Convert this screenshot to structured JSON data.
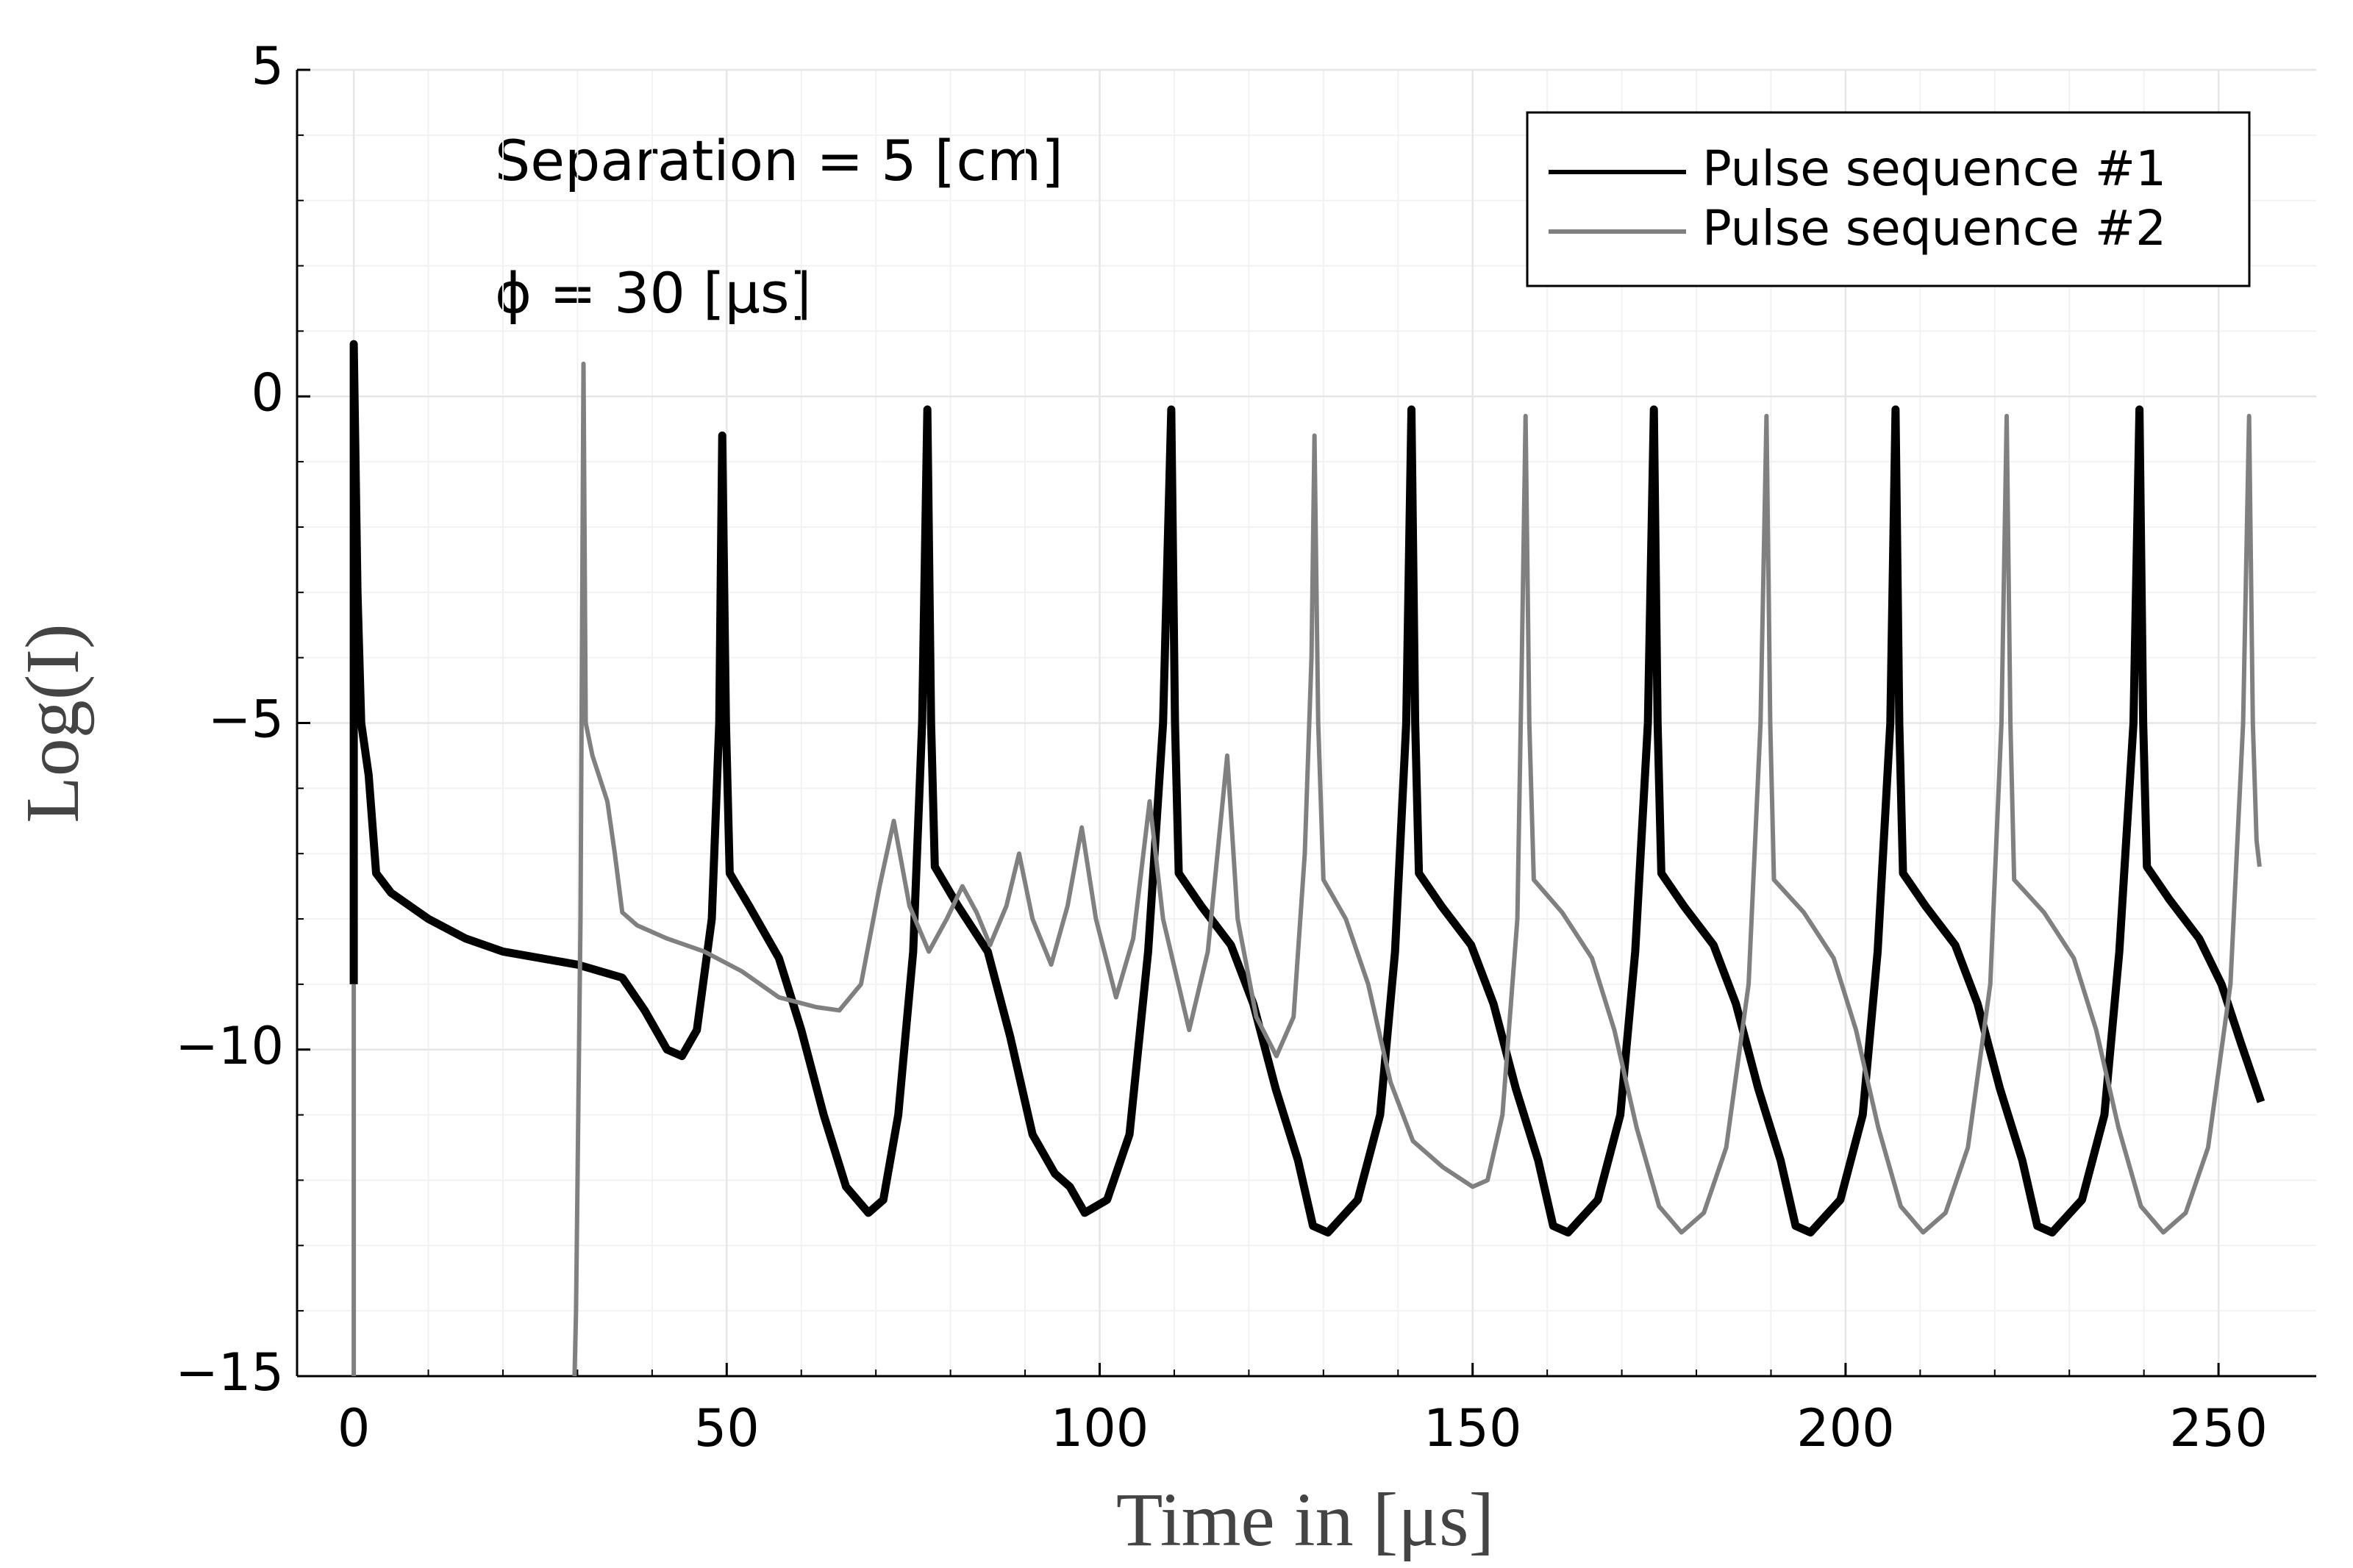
{
  "chart_data": {
    "type": "line",
    "xlabel": "Time in [μs]",
    "ylabel": "Log(I)",
    "annotations": [
      "Separation = 5 [cm]",
      "ϕ = 30 [μs]"
    ],
    "xlim": [
      -7.6,
      263.1
    ],
    "ylim": [
      -15,
      5
    ],
    "xticks": [
      0,
      50,
      100,
      150,
      200,
      250
    ],
    "yticks": [
      {
        "value": -15,
        "label": "−15"
      },
      {
        "value": -10,
        "label": "−10"
      },
      {
        "value": -5,
        "label": "−5"
      },
      0,
      5
    ],
    "grid": true,
    "legend": "upper right",
    "series": [
      {
        "name": "Pulse sequence #1",
        "color": "#000000",
        "x": [
          0,
          0,
          0.5,
          1,
          2,
          3,
          5,
          10,
          15,
          20,
          30,
          36,
          39,
          42,
          44,
          46,
          48,
          49,
          49.4,
          49.9,
          50.4,
          53,
          57,
          60,
          63,
          66,
          69,
          71,
          73,
          75,
          76.2,
          76.9,
          77.4,
          77.9,
          81,
          85,
          88,
          91,
          94,
          96,
          98,
          101,
          104,
          106.5,
          108.5,
          109.6,
          110.1,
          110.6,
          113.6,
          117.6,
          120.6,
          123.6,
          126.6,
          128.6,
          130.6,
          134.6,
          137.6,
          139.6,
          141.1,
          141.8,
          142.3,
          142.8,
          145.8,
          149.8,
          152.8,
          155.8,
          158.8,
          160.8,
          162.8,
          166.8,
          169.8,
          171.8,
          173.5,
          174.3,
          174.8,
          175.3,
          178.3,
          182.3,
          185.3,
          188.3,
          191.3,
          193.3,
          195.3,
          199.3,
          202.3,
          204.3,
          206,
          206.7,
          207.2,
          207.7,
          210.7,
          214.7,
          217.7,
          220.7,
          223.7,
          225.7,
          227.7,
          231.7,
          234.7,
          236.7,
          238.6,
          239.4,
          239.9,
          240.4,
          243.4,
          247.4,
          250.4,
          253,
          255.7
        ],
        "values": [
          -9,
          0.8,
          -3,
          -5,
          -5.8,
          -7.3,
          -7.6,
          -8.0,
          -8.3,
          -8.5,
          -8.7,
          -8.9,
          -9.4,
          -10.0,
          -10.1,
          -9.7,
          -8,
          -5,
          -0.6,
          -5,
          -7.3,
          -7.8,
          -8.6,
          -9.7,
          -11,
          -12.1,
          -12.5,
          -12.3,
          -11,
          -8.5,
          -5,
          -0.2,
          -5,
          -7.2,
          -7.8,
          -8.5,
          -9.8,
          -11.3,
          -11.9,
          -12.1,
          -12.5,
          -12.3,
          -11.3,
          -8.5,
          -5,
          -0.2,
          -5,
          -7.3,
          -7.8,
          -8.4,
          -9.3,
          -10.6,
          -11.7,
          -12.7,
          -12.8,
          -12.3,
          -11,
          -8.5,
          -5,
          -0.2,
          -5,
          -7.3,
          -7.8,
          -8.4,
          -9.3,
          -10.6,
          -11.7,
          -12.7,
          -12.8,
          -12.3,
          -11,
          -8.5,
          -5,
          -0.2,
          -5,
          -7.3,
          -7.8,
          -8.4,
          -9.3,
          -10.6,
          -11.7,
          -12.7,
          -12.8,
          -12.3,
          -11,
          -8.5,
          -5,
          -0.2,
          -5,
          -7.3,
          -7.8,
          -8.4,
          -9.3,
          -10.6,
          -11.7,
          -12.7,
          -12.8,
          -12.3,
          -11,
          -8.5,
          -5,
          -0.2,
          -5,
          -7.2,
          -7.7,
          -8.3,
          -9.0,
          -9.9,
          -10.8
        ]
      },
      {
        "name": "Pulse sequence #2",
        "color": "#808080",
        "x": [
          0,
          0,
          null,
          29.6,
          29.8,
          30.4,
          30.8,
          31.1,
          32,
          34,
          35,
          36,
          38,
          42,
          47,
          52,
          57,
          62,
          65.1,
          68,
          70.5,
          72.4,
          74.5,
          77.1,
          79.5,
          81.6,
          83.5,
          85.3,
          87.5,
          89.2,
          91,
          93.5,
          95.7,
          97.6,
          99.5,
          102.2,
          104.5,
          106.7,
          108.5,
          112,
          114.5,
          117.1,
          118.5,
          121,
          123.7,
          126,
          127.5,
          128.4,
          128.8,
          129.3,
          130,
          133,
          136,
          139,
          142,
          146,
          150,
          152,
          154,
          156,
          156.6,
          157.1,
          157.6,
          158.2,
          162,
          166,
          169,
          172,
          175,
          178,
          181,
          184,
          187,
          188.6,
          189.4,
          189.9,
          190.4,
          194.4,
          198.4,
          201.4,
          204.4,
          207.4,
          210.4,
          213.4,
          216.4,
          219.4,
          220.9,
          221.6,
          222.1,
          222.6,
          226.6,
          230.6,
          233.6,
          236.6,
          239.6,
          242.6,
          245.6,
          248.6,
          251.6,
          253.3,
          254.1,
          254.6,
          255.1,
          255.5
        ],
        "values": [
          -15,
          -9,
          null,
          -15,
          -14,
          -8,
          0.5,
          -5,
          -5.5,
          -6.2,
          -7,
          -7.9,
          -8.1,
          -8.3,
          -8.5,
          -8.8,
          -9.2,
          -9.35,
          -9.4,
          -9,
          -7.5,
          -6.5,
          -7.8,
          -8.5,
          -8,
          -7.5,
          -7.9,
          -8.4,
          -7.8,
          -7,
          -8,
          -8.7,
          -7.8,
          -6.6,
          -8,
          -9.2,
          -8.3,
          -6.2,
          -8,
          -9.7,
          -8.5,
          -5.5,
          -8,
          -9.5,
          -10.1,
          -9.5,
          -7,
          -4,
          -0.6,
          -5,
          -7.4,
          -8,
          -9,
          -10.5,
          -11.4,
          -11.8,
          -12.1,
          -12,
          -11,
          -8,
          -4,
          -0.3,
          -5,
          -7.4,
          -7.9,
          -8.6,
          -9.7,
          -11.2,
          -12.4,
          -12.8,
          -12.5,
          -11.5,
          -9,
          -5,
          -0.3,
          -5,
          -7.4,
          -7.9,
          -8.6,
          -9.7,
          -11.2,
          -12.4,
          -12.8,
          -12.5,
          -11.5,
          -9,
          -5,
          -0.3,
          -5,
          -7.4,
          -7.9,
          -8.6,
          -9.7,
          -11.2,
          -12.4,
          -12.8,
          -12.5,
          -11.5,
          -9,
          -5,
          -0.3,
          -5,
          -6.8,
          -7.2
        ]
      }
    ]
  }
}
